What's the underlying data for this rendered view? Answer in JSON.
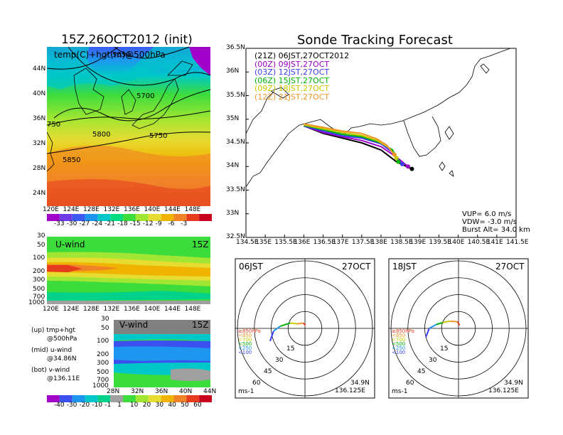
{
  "left": {
    "title": "15Z,26OCT2012 (init)",
    "map": {
      "label": "temp(C)+hgt(m)@500hPa",
      "lat_ticks": [
        "44N",
        "40N",
        "36N",
        "32N",
        "28N",
        "24N"
      ],
      "lon_ticks": [
        "120E",
        "124E",
        "128E",
        "132E",
        "136E",
        "140E",
        "144E",
        "148E"
      ],
      "contours": [
        "5850",
        "5800",
        "5750",
        "5700",
        "5650",
        "750"
      ],
      "colorbar_labels": [
        "-33",
        "-30",
        "-27",
        "-24",
        "-21",
        "-18",
        "-15",
        "-12",
        "-9",
        "-6",
        "-3"
      ],
      "colors": [
        "#a000c8",
        "#6e3ce6",
        "#3c5af0",
        "#1e96f0",
        "#00c8c8",
        "#00dc82",
        "#3cdc3c",
        "#a0e632",
        "#e6dc32",
        "#f0b400",
        "#f08228",
        "#e63c1e",
        "#c8001e"
      ]
    },
    "uwind": {
      "label": "U-wind",
      "time": "15Z",
      "p_ticks": [
        "30",
        "50",
        "100",
        "200",
        "300",
        "500",
        "700",
        "1000"
      ],
      "lon_ticks": [
        "120E",
        "124E",
        "128E",
        "132E",
        "136E",
        "140E",
        "144E",
        "148E"
      ]
    },
    "vwind": {
      "label": "V-wind",
      "time": "15Z",
      "p_ticks": [
        "30",
        "50",
        "100",
        "200",
        "300",
        "500",
        "700",
        "1000"
      ],
      "lat_ticks": [
        "28N",
        "32N",
        "36N",
        "40N",
        "44N"
      ],
      "colorbar_labels": [
        "-40",
        "-30",
        "-20",
        "-10",
        "-1",
        "1",
        "10",
        "20",
        "30",
        "40",
        "50",
        "60"
      ],
      "colors": [
        "#a000c8",
        "#3c50f0",
        "#1e96f0",
        "#00c8c8",
        "#00d28c",
        "#a0a0a0",
        "#3cdc3c",
        "#a0e632",
        "#e6dc32",
        "#f0b400",
        "#f08228",
        "#e63c1e",
        "#c8001e"
      ]
    },
    "notes": [
      {
        "head": "(up)",
        "l1": "tmp+hgt",
        "l2": "@500hPa"
      },
      {
        "head": "(mid)",
        "l1": "u-wind",
        "l2": "@34.86N"
      },
      {
        "head": "(bot)",
        "l1": "v-wind",
        "l2": "@136.11E"
      }
    ]
  },
  "tracking": {
    "title": "Sonde Tracking Forecast",
    "legend": [
      {
        "text": "(21Z)  06JST,27OCT2012",
        "color": "#000000"
      },
      {
        "text": "(00Z)  09JST,27OCT",
        "color": "#a000c8"
      },
      {
        "text": "(03Z)  12JST,27OCT",
        "color": "#3c3cf0"
      },
      {
        "text": "(06Z)  15JST,27OCT",
        "color": "#00b400"
      },
      {
        "text": "(09Z)  18JST,27OCT",
        "color": "#c8c800"
      },
      {
        "text": "(12Z)  21JST,27OCT",
        "color": "#f09628"
      }
    ],
    "info": [
      "VUP=  6.0  m/s",
      "VDW= -3.0  m/s",
      "Burst Alt=  34.0  km"
    ],
    "lat_ticks": [
      "36.5N",
      "36N",
      "35.5N",
      "35N",
      "34.5N",
      "34N",
      "33.5N",
      "33N",
      "32.5N"
    ],
    "lon_ticks": [
      "134.5E",
      "135E",
      "135.5E",
      "136E",
      "136.5E",
      "137E",
      "137.5E",
      "138E",
      "138.5E",
      "139E",
      "139.5E",
      "140E",
      "140.5E",
      "141E",
      "141.5E"
    ]
  },
  "chart_data": [
    {
      "type": "line",
      "title": "Sonde Tracking Forecast",
      "xlim": [
        134.5,
        141.5
      ],
      "ylim": [
        32.5,
        36.5
      ],
      "series": [
        {
          "name": "(21Z)  06JST,27OCT2012",
          "x": [
            136.0,
            136.5,
            137.0,
            137.5,
            138.0,
            138.4,
            138.8
          ],
          "y": [
            34.86,
            34.7,
            34.6,
            34.5,
            34.35,
            34.1,
            33.95
          ]
        },
        {
          "name": "(00Z)  09JST,27OCT",
          "x": [
            136.0,
            136.5,
            137.0,
            137.5,
            138.0,
            138.4,
            138.7
          ],
          "y": [
            34.86,
            34.72,
            34.63,
            34.55,
            34.42,
            34.2,
            34.0
          ]
        },
        {
          "name": "(03Z)  12JST,27OCT",
          "x": [
            136.0,
            136.5,
            137.0,
            137.5,
            138.0,
            138.3,
            138.55
          ],
          "y": [
            34.86,
            34.75,
            34.65,
            34.6,
            34.48,
            34.3,
            34.05
          ]
        },
        {
          "name": "(06Z)  15JST,27OCT",
          "x": [
            136.0,
            136.5,
            137.0,
            137.5,
            138.0,
            138.3,
            138.45
          ],
          "y": [
            34.87,
            34.78,
            34.68,
            34.63,
            34.5,
            34.35,
            34.1
          ]
        },
        {
          "name": "(09Z)  18JST,27OCT",
          "x": [
            136.0,
            136.5,
            137.0,
            137.5,
            137.9,
            138.2,
            138.4
          ],
          "y": [
            34.88,
            34.8,
            34.72,
            34.66,
            34.55,
            34.4,
            34.18
          ]
        },
        {
          "name": "(12Z)  21JST,27OCT",
          "x": [
            136.0,
            136.5,
            137.0,
            137.5,
            137.9,
            138.15,
            138.35
          ],
          "y": [
            34.9,
            34.83,
            34.75,
            34.7,
            34.58,
            34.45,
            34.25
          ]
        }
      ]
    },
    {
      "type": "line",
      "title": "06JST",
      "date": "27OCT",
      "location": [
        "34.9N",
        "136.125E"
      ],
      "unit": "ms-1",
      "ring_labels": [
        "15",
        "30",
        "45",
        "60"
      ],
      "levels": [
        "≥850hPa",
        "<850",
        "<700",
        "<500",
        "<250",
        "<100"
      ],
      "series": [
        {
          "dir_deg": [
            190,
            160,
            120,
            110,
            95,
            85,
            70
          ],
          "speed": [
            3,
            5,
            8,
            14,
            22,
            28,
            33
          ]
        }
      ]
    },
    {
      "type": "line",
      "title": "18JST",
      "date": "27OCT",
      "location": [
        "34.9N",
        "136.125E"
      ],
      "unit": "ms-1",
      "ring_labels": [
        "15",
        "30",
        "45",
        "60"
      ],
      "levels": [
        "≥850hPa",
        "<850",
        "<700",
        "<500",
        "<250",
        "<100"
      ],
      "series": [
        {
          "dir_deg": [
            200,
            170,
            130,
            110,
            100,
            90,
            75
          ],
          "speed": [
            3,
            6,
            10,
            15,
            20,
            26,
            30
          ]
        }
      ]
    }
  ]
}
